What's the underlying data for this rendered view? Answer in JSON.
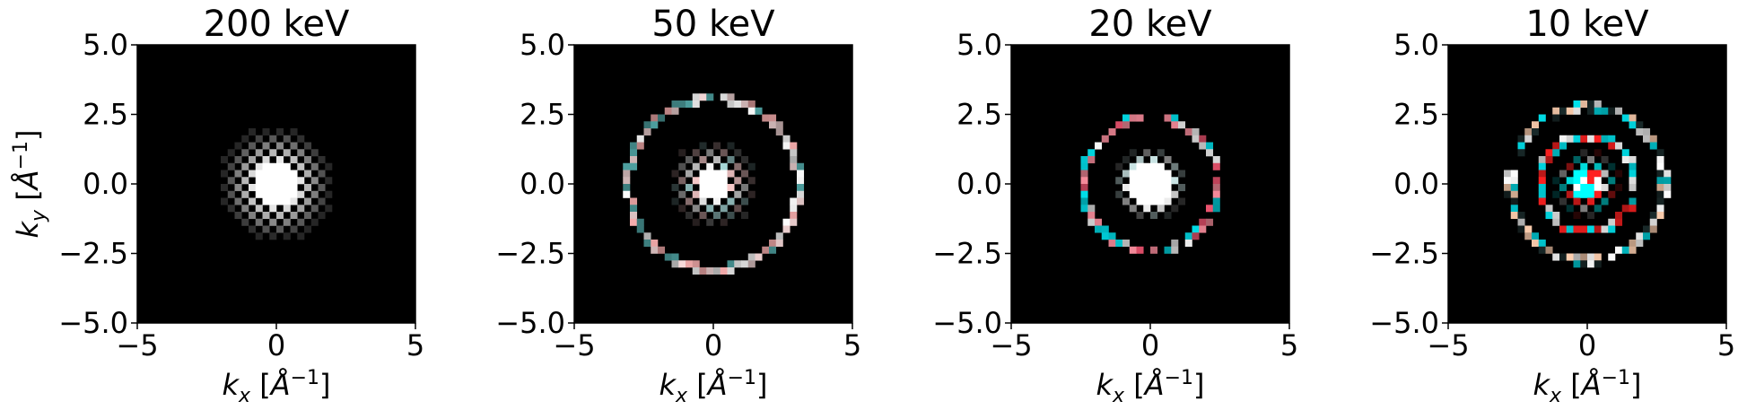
{
  "chart_data": [
    {
      "type": "heatmap",
      "title": "200 keV",
      "xlabel": "k_x [Å^-1]",
      "ylabel": "k_y [Å^-1]",
      "xlim": [
        -5,
        5
      ],
      "ylim": [
        -5,
        5
      ],
      "xticks": [
        "−5",
        "0",
        "5"
      ],
      "yticks": [
        "5.0",
        "2.5",
        "0.0",
        "−2.5",
        "−5.0"
      ],
      "background": "#000000",
      "features": [
        {
          "kind": "central-disk",
          "radius": 0.75,
          "checker_radius": 2.1,
          "colors": [
            "#ffffff"
          ]
        }
      ]
    },
    {
      "type": "heatmap",
      "title": "50 keV",
      "xlabel": "k_x [Å^-1]",
      "ylabel": "",
      "xlim": [
        -5,
        5
      ],
      "ylim": [
        -5,
        5
      ],
      "xticks": [
        "−5",
        "0",
        "5"
      ],
      "yticks": [
        "5.0",
        "2.5",
        "0.0",
        "−2.5",
        "−5.0"
      ],
      "background": "#000000",
      "features": [
        {
          "kind": "central-disk",
          "radius": 0.6,
          "checker_radius": 1.6,
          "colors": [
            "#ffffff",
            "#ffd0d0",
            "#bff7f7"
          ]
        },
        {
          "kind": "ring",
          "radius": 3.05,
          "colors": [
            "#ffb3b3",
            "#ffffff",
            "#4fa3a3",
            "#ffe0e0"
          ]
        }
      ]
    },
    {
      "type": "heatmap",
      "title": "20 keV",
      "xlabel": "k_x [Å^-1]",
      "ylabel": "",
      "xlim": [
        -5,
        5
      ],
      "ylim": [
        -5,
        5
      ],
      "xticks": [
        "−5",
        "0",
        "5"
      ],
      "yticks": [
        "5.0",
        "2.5",
        "0.0",
        "−2.5",
        "−5.0"
      ],
      "background": "#000000",
      "features": [
        {
          "kind": "central-disk",
          "radius": 0.85,
          "checker_radius": 1.3,
          "colors": [
            "#ffffff",
            "#d9f5f5"
          ]
        },
        {
          "kind": "ring",
          "radius": 2.4,
          "colors": [
            "#ff5a78",
            "#ffffff",
            "#00e5f0",
            "#ff90a0"
          ]
        }
      ]
    },
    {
      "type": "heatmap",
      "title": "10 keV",
      "xlabel": "k_x [Å^-1]",
      "ylabel": "",
      "xlim": [
        -5,
        5
      ],
      "ylim": [
        -5,
        5
      ],
      "xticks": [
        "−5",
        "0",
        "5"
      ],
      "yticks": [
        "5.0",
        "2.5",
        "0.0",
        "−2.5",
        "−5.0"
      ],
      "background": "#000000",
      "features": [
        {
          "kind": "central-disk",
          "radius": 0.55,
          "checker_radius": 1.2,
          "colors": [
            "#00ffff",
            "#ff2020",
            "#ffffff"
          ]
        },
        {
          "kind": "ring",
          "radius": 1.7,
          "colors": [
            "#ffffff",
            "#ff2020",
            "#00e5f0"
          ]
        },
        {
          "kind": "ring",
          "radius": 2.75,
          "colors": [
            "#ffffff",
            "#00e5f0",
            "#ffd0b0",
            "#1a2a2a"
          ]
        }
      ]
    }
  ]
}
